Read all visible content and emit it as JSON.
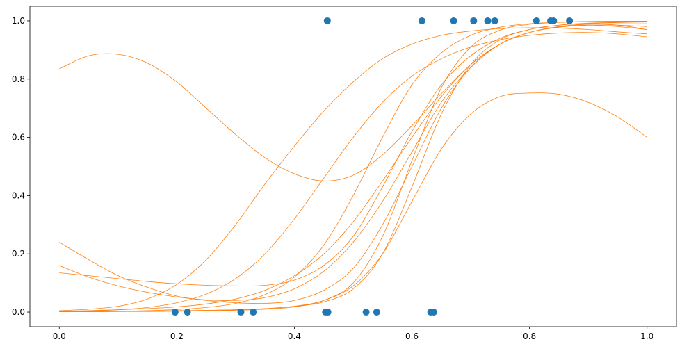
{
  "chart_data": {
    "type": "scatter",
    "title": "",
    "xlabel": "",
    "ylabel": "",
    "xlim": [
      -0.05,
      1.05
    ],
    "ylim": [
      -0.05,
      1.05
    ],
    "grid": false,
    "legend": "none",
    "x_ticks": [
      0.0,
      0.2,
      0.4,
      0.6,
      0.8,
      1.0
    ],
    "y_ticks": [
      0.0,
      0.2,
      0.4,
      0.6,
      0.8,
      1.0
    ],
    "x_tick_labels": [
      "0.0",
      "0.2",
      "0.4",
      "0.6",
      "0.8",
      "1.0"
    ],
    "y_tick_labels": [
      "0.0",
      "0.2",
      "0.4",
      "0.6",
      "0.8",
      "1.0"
    ],
    "points": {
      "color": "#1f77b4",
      "x": [
        0.197,
        0.218,
        0.309,
        0.33,
        0.453,
        0.457,
        0.522,
        0.54,
        0.632,
        0.637,
        0.456,
        0.617,
        0.671,
        0.705,
        0.729,
        0.741,
        0.812,
        0.836,
        0.841,
        0.868
      ],
      "y": [
        0,
        0,
        0,
        0,
        0,
        0,
        0,
        0,
        0,
        0,
        1,
        1,
        1,
        1,
        1,
        1,
        1,
        1,
        1,
        1
      ]
    },
    "curves": {
      "color": "#ff7f0e",
      "x": [
        0.0,
        0.05,
        0.1,
        0.15,
        0.2,
        0.25,
        0.3,
        0.35,
        0.4,
        0.45,
        0.5,
        0.55,
        0.6,
        0.65,
        0.7,
        0.75,
        0.8,
        0.85,
        0.9,
        0.95,
        1.0
      ],
      "y": [
        [
          0.835,
          0.88,
          0.885,
          0.855,
          0.79,
          0.7,
          0.61,
          0.53,
          0.475,
          0.45,
          0.47,
          0.54,
          0.64,
          0.75,
          0.85,
          0.92,
          0.96,
          0.978,
          0.985,
          0.98,
          0.97
        ],
        [
          0.135,
          0.125,
          0.115,
          0.105,
          0.097,
          0.092,
          0.09,
          0.092,
          0.11,
          0.16,
          0.26,
          0.43,
          0.62,
          0.78,
          0.88,
          0.94,
          0.97,
          0.985,
          0.992,
          0.995,
          0.997
        ],
        [
          0.24,
          0.18,
          0.125,
          0.085,
          0.055,
          0.04,
          0.032,
          0.03,
          0.04,
          0.075,
          0.15,
          0.3,
          0.5,
          0.7,
          0.84,
          0.92,
          0.96,
          0.98,
          0.99,
          0.994,
          0.996
        ],
        [
          0.16,
          0.12,
          0.09,
          0.068,
          0.052,
          0.042,
          0.04,
          0.05,
          0.08,
          0.14,
          0.24,
          0.38,
          0.55,
          0.72,
          0.84,
          0.92,
          0.96,
          0.98,
          0.988,
          0.99,
          0.99
        ],
        [
          0.005,
          0.01,
          0.02,
          0.045,
          0.095,
          0.18,
          0.3,
          0.44,
          0.57,
          0.69,
          0.79,
          0.87,
          0.92,
          0.95,
          0.965,
          0.973,
          0.976,
          0.975,
          0.97,
          0.962,
          0.955
        ],
        [
          0.002,
          0.004,
          0.008,
          0.016,
          0.032,
          0.062,
          0.115,
          0.2,
          0.32,
          0.46,
          0.6,
          0.72,
          0.81,
          0.87,
          0.91,
          0.935,
          0.95,
          0.958,
          0.96,
          0.955,
          0.945
        ],
        [
          0.001,
          0.002,
          0.003,
          0.005,
          0.009,
          0.016,
          0.03,
          0.06,
          0.12,
          0.23,
          0.4,
          0.6,
          0.78,
          0.89,
          0.95,
          0.978,
          0.99,
          0.995,
          0.997,
          0.998,
          0.998
        ],
        [
          0.003,
          0.005,
          0.008,
          0.012,
          0.018,
          0.028,
          0.045,
          0.075,
          0.125,
          0.2,
          0.31,
          0.45,
          0.6,
          0.74,
          0.85,
          0.92,
          0.96,
          0.978,
          0.985,
          0.985,
          0.98
        ],
        [
          0.001,
          0.001,
          0.002,
          0.002,
          0.003,
          0.004,
          0.006,
          0.01,
          0.018,
          0.04,
          0.1,
          0.26,
          0.52,
          0.77,
          0.91,
          0.968,
          0.988,
          0.995,
          0.998,
          0.999,
          0.999
        ],
        [
          0.002,
          0.002,
          0.003,
          0.004,
          0.005,
          0.006,
          0.008,
          0.012,
          0.02,
          0.04,
          0.09,
          0.2,
          0.38,
          0.56,
          0.68,
          0.74,
          0.752,
          0.748,
          0.72,
          0.67,
          0.6
        ],
        [
          0.001,
          0.002,
          0.002,
          0.003,
          0.004,
          0.006,
          0.008,
          0.012,
          0.02,
          0.035,
          0.08,
          0.2,
          0.43,
          0.68,
          0.85,
          0.935,
          0.97,
          0.985,
          0.99,
          0.985,
          0.97
        ]
      ]
    }
  }
}
